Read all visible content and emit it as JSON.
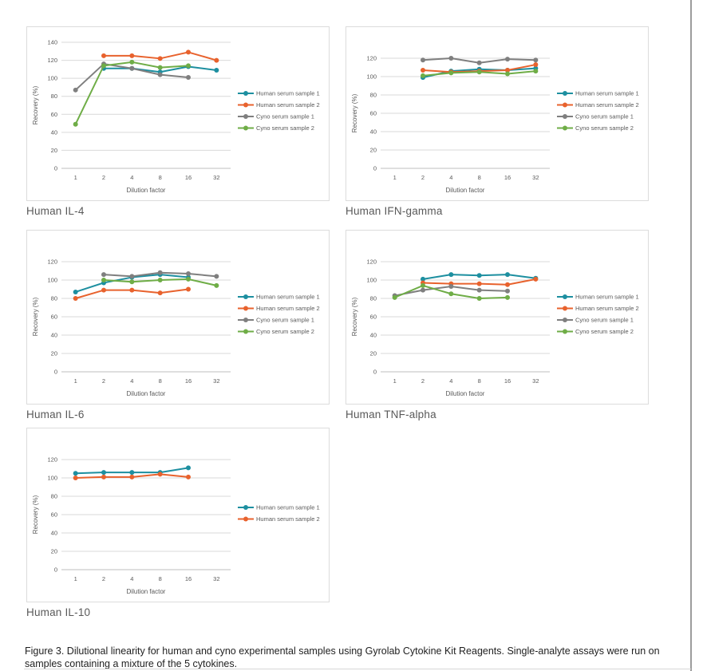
{
  "page": {
    "caption": "Figure 3. Dilutional linearity for human and cyno experimental samples using Gyrolab Cytokine Kit Reagents. Single-analyte assays were run on samples containing a mixture of the 5 cytokines."
  },
  "colors": {
    "teal": "#1d8fa0",
    "orange": "#e8622d",
    "gray": "#7f7f7f",
    "green": "#6fad47",
    "axis_text": "#595959",
    "grid": "#d9d9d9",
    "baseline": "#bfbfbf",
    "chart_border": "#dcdcdc",
    "title_text": "#595959",
    "caption_text": "#1f1f1f",
    "page_edge": "#9c9c9c"
  },
  "chart_data": [
    {
      "id": "human-il4",
      "title": "Human IL-4",
      "type": "line",
      "xlabel": "Dilution factor",
      "ylabel": "Recovery (%)",
      "categories": [
        "1",
        "2",
        "4",
        "8",
        "16",
        "32"
      ],
      "yticks": [
        0,
        20,
        40,
        60,
        80,
        100,
        120,
        140
      ],
      "ylim": [
        0,
        140
      ],
      "grid": true,
      "legend_position": "right",
      "series": [
        {
          "name": "Human serum sample 1",
          "color": "teal",
          "values": [
            null,
            111,
            111,
            107,
            113,
            109
          ]
        },
        {
          "name": "Human serum sample 2",
          "color": "orange",
          "values": [
            null,
            125,
            125,
            122,
            129,
            120
          ]
        },
        {
          "name": "Cyno serum sample 1",
          "color": "gray",
          "values": [
            87,
            116,
            111,
            104,
            101,
            null
          ]
        },
        {
          "name": "Cyno serum sample 2",
          "color": "green",
          "values": [
            49,
            114,
            118,
            112,
            114,
            null
          ]
        }
      ]
    },
    {
      "id": "human-ifn-gamma",
      "title": "Human IFN-gamma",
      "type": "line",
      "xlabel": "Dilution factor",
      "ylabel": "Recovery (%)",
      "categories": [
        "1",
        "2",
        "4",
        "8",
        "16",
        "32"
      ],
      "yticks": [
        0,
        20,
        40,
        60,
        80,
        100,
        120
      ],
      "ylim": [
        0,
        120
      ],
      "grid": true,
      "legend_position": "right",
      "series": [
        {
          "name": "Human serum sample 1",
          "color": "teal",
          "values": [
            null,
            99,
            106,
            108,
            107,
            109
          ]
        },
        {
          "name": "Human serum sample 2",
          "color": "orange",
          "values": [
            null,
            107,
            105,
            106,
            107,
            113
          ]
        },
        {
          "name": "Cyno serum sample 1",
          "color": "gray",
          "values": [
            null,
            118,
            120,
            115,
            119,
            118
          ]
        },
        {
          "name": "Cyno serum sample 2",
          "color": "green",
          "values": [
            null,
            101,
            104,
            105,
            103,
            106
          ]
        }
      ]
    },
    {
      "id": "human-il6",
      "title": "Human IL-6",
      "type": "line",
      "xlabel": "Dilution factor",
      "ylabel": "Recovery (%)",
      "categories": [
        "1",
        "2",
        "4",
        "8",
        "16",
        "32"
      ],
      "yticks": [
        0,
        20,
        40,
        60,
        80,
        100,
        120
      ],
      "ylim": [
        0,
        120
      ],
      "grid": true,
      "legend_position": "right",
      "series": [
        {
          "name": "Human serum sample 1",
          "color": "teal",
          "values": [
            87,
            97,
            103,
            106,
            103,
            null
          ]
        },
        {
          "name": "Human serum sample 2",
          "color": "orange",
          "values": [
            80,
            89,
            89,
            86,
            90,
            null
          ]
        },
        {
          "name": "Cyno serum sample 1",
          "color": "gray",
          "values": [
            null,
            106,
            104,
            108,
            107,
            104
          ]
        },
        {
          "name": "Cyno serum sample 2",
          "color": "green",
          "values": [
            null,
            100,
            98,
            100,
            101,
            94
          ]
        }
      ]
    },
    {
      "id": "human-tnf-alpha",
      "title": "Human TNF-alpha",
      "type": "line",
      "xlabel": "Dilution factor",
      "ylabel": "Recovery (%)",
      "categories": [
        "1",
        "2",
        "4",
        "8",
        "16",
        "32"
      ],
      "yticks": [
        0,
        20,
        40,
        60,
        80,
        100,
        120
      ],
      "ylim": [
        0,
        120
      ],
      "grid": true,
      "legend_position": "right",
      "series": [
        {
          "name": "Human serum sample 1",
          "color": "teal",
          "values": [
            null,
            101,
            106,
            105,
            106,
            102
          ]
        },
        {
          "name": "Human serum sample 2",
          "color": "orange",
          "values": [
            null,
            97,
            96,
            96,
            95,
            101
          ]
        },
        {
          "name": "Cyno serum sample 1",
          "color": "gray",
          "values": [
            83,
            89,
            93,
            89,
            88,
            null
          ]
        },
        {
          "name": "Cyno serum sample 2",
          "color": "green",
          "values": [
            81,
            94,
            85,
            80,
            81,
            null
          ]
        }
      ]
    },
    {
      "id": "human-il10",
      "title": "Human IL-10",
      "type": "line",
      "xlabel": "Dilution factor",
      "ylabel": "Recovery (%)",
      "categories": [
        "1",
        "2",
        "4",
        "8",
        "16",
        "32"
      ],
      "yticks": [
        0,
        20,
        40,
        60,
        80,
        100,
        120
      ],
      "ylim": [
        0,
        120
      ],
      "grid": true,
      "legend_position": "right",
      "series": [
        {
          "name": "Human serum sample 1",
          "color": "teal",
          "values": [
            105,
            106,
            106,
            106,
            111,
            null
          ]
        },
        {
          "name": "Human serum sample 2",
          "color": "orange",
          "values": [
            100,
            101,
            101,
            104,
            101,
            null
          ]
        }
      ]
    }
  ]
}
